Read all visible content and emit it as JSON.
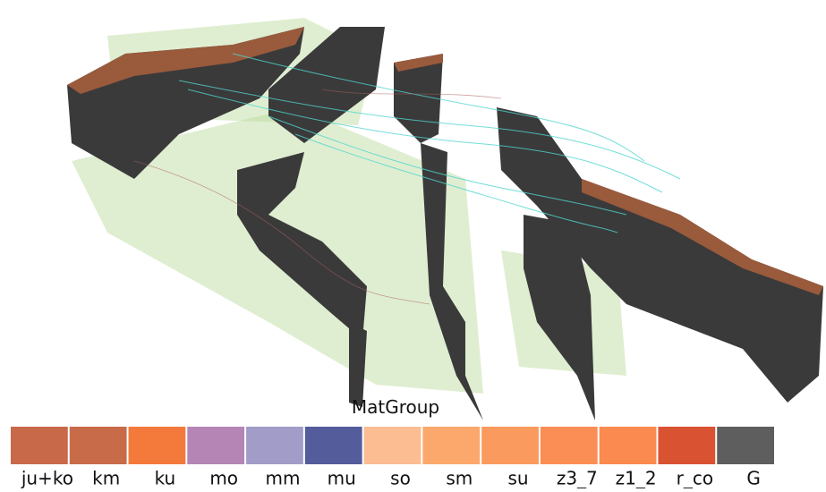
{
  "legend": {
    "title": "MatGroup",
    "items": [
      {
        "label": "ju+ko",
        "color": "#c8694a"
      },
      {
        "label": "km",
        "color": "#c76b48"
      },
      {
        "label": "ku",
        "color": "#f47a3c"
      },
      {
        "label": "mo",
        "color": "#b585b5"
      },
      {
        "label": "mm",
        "color": "#a29cc8"
      },
      {
        "label": "mu",
        "color": "#545c9c"
      },
      {
        "label": "so",
        "color": "#fcbd92"
      },
      {
        "label": "sm",
        "color": "#fca86c"
      },
      {
        "label": "su",
        "color": "#fa9a5e"
      },
      {
        "label": "z3_7",
        "color": "#fb8e55"
      },
      {
        "label": "z1_2",
        "color": "#fb8a50"
      },
      {
        "label": "r_co",
        "color": "#d95232"
      },
      {
        "label": "G",
        "color": "#5e5e5e"
      }
    ]
  }
}
